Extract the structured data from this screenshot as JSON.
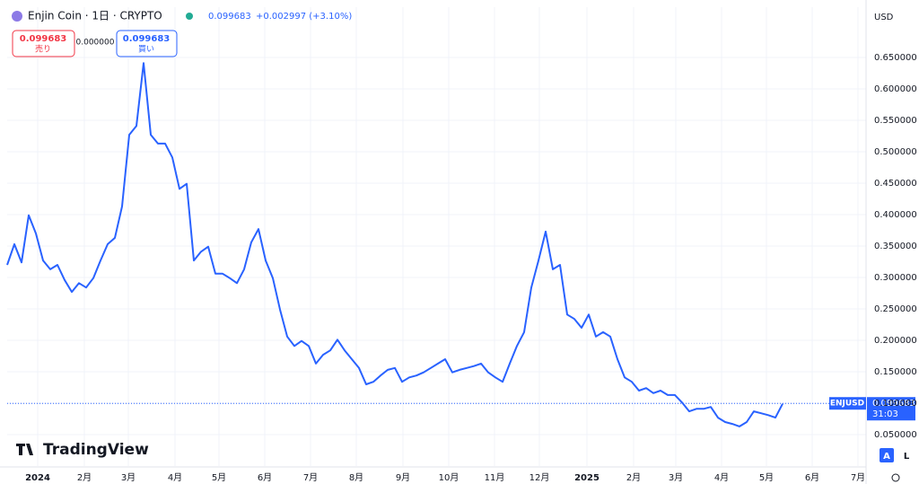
{
  "header": {
    "symbol": "Enjin Coin · 1日 · CRYPTO",
    "price": "0.099683",
    "change": "+0.002997 (+3.10%)"
  },
  "trade": {
    "sell_price": "0.099683",
    "sell_label": "売り",
    "spread": "0.000000",
    "buy_price": "0.099683",
    "buy_label": "買い"
  },
  "currency": "USD",
  "price_tag": {
    "symbol": "ENJUSD",
    "price": "0.099683",
    "countdown": "31:03"
  },
  "logo": "TradingView",
  "buttons": [
    "A",
    "L"
  ],
  "chart_data": {
    "type": "line",
    "color": "#2962ff",
    "grid": true,
    "values": [
      0.32,
      0.353,
      0.324,
      0.399,
      0.37,
      0.327,
      0.313,
      0.32,
      0.296,
      0.277,
      0.291,
      0.284,
      0.299,
      0.327,
      0.353,
      0.363,
      0.413,
      0.527,
      0.541,
      0.641,
      0.527,
      0.513,
      0.513,
      0.491,
      0.441,
      0.449,
      0.327,
      0.341,
      0.349,
      0.306,
      0.306,
      0.299,
      0.291,
      0.313,
      0.356,
      0.377,
      0.327,
      0.299,
      0.249,
      0.206,
      0.191,
      0.199,
      0.191,
      0.163,
      0.177,
      0.184,
      0.201,
      0.184,
      0.17,
      0.156,
      0.13,
      0.134,
      0.144,
      0.153,
      0.156,
      0.134,
      0.141,
      0.144,
      0.149,
      0.156,
      0.163,
      0.17,
      0.149,
      0.153,
      0.156,
      0.159,
      0.163,
      0.149,
      0.141,
      0.134,
      0.163,
      0.191,
      0.213,
      0.284,
      0.327,
      0.373,
      0.313,
      0.32,
      0.241,
      0.234,
      0.22,
      0.241,
      0.206,
      0.213,
      0.206,
      0.17,
      0.141,
      0.134,
      0.12,
      0.124,
      0.116,
      0.12,
      0.113,
      0.113,
      0.101,
      0.087,
      0.091,
      0.091,
      0.094,
      0.077,
      0.07,
      0.067,
      0.063,
      0.07,
      0.087,
      0.084,
      0.081,
      0.077,
      0.099
    ],
    "last_value": 0.099683,
    "xlim": [
      0,
      119.625
    ],
    "xticks": [
      {
        "value": 4.25,
        "label": "2024"
      },
      {
        "value": 10.75,
        "label": "2月"
      },
      {
        "value": 16.875,
        "label": "3月"
      },
      {
        "value": 23.375,
        "label": "4月"
      },
      {
        "value": 29.5,
        "label": "5月"
      },
      {
        "value": 35.875,
        "label": "6月"
      },
      {
        "value": 42.25,
        "label": "7月"
      },
      {
        "value": 48.625,
        "label": "8月"
      },
      {
        "value": 55.125,
        "label": "9月"
      },
      {
        "value": 61.5,
        "label": "10月"
      },
      {
        "value": 67.875,
        "label": "11月"
      },
      {
        "value": 74.125,
        "label": "12月"
      },
      {
        "value": 80.75,
        "label": "2025"
      },
      {
        "value": 87.25,
        "label": "2月"
      },
      {
        "value": 93.125,
        "label": "3月"
      },
      {
        "value": 99.5,
        "label": "4月"
      },
      {
        "value": 105.75,
        "label": "5月"
      },
      {
        "value": 112.125,
        "label": "6月"
      },
      {
        "value": 118.5,
        "label": "7月"
      }
    ],
    "ylim": [
      0,
      0.73
    ],
    "yticks": [
      {
        "value": 0.05,
        "label": "0.050000"
      },
      {
        "value": 0.1,
        "label": "0.100000"
      },
      {
        "value": 0.15,
        "label": "0.150000"
      },
      {
        "value": 0.2,
        "label": "0.200000"
      },
      {
        "value": 0.25,
        "label": "0.250000"
      },
      {
        "value": 0.3,
        "label": "0.300000"
      },
      {
        "value": 0.35,
        "label": "0.350000"
      },
      {
        "value": 0.4,
        "label": "0.400000"
      },
      {
        "value": 0.45,
        "label": "0.450000"
      },
      {
        "value": 0.5,
        "label": "0.500000"
      },
      {
        "value": 0.55,
        "label": "0.550000"
      },
      {
        "value": 0.6,
        "label": "0.600000"
      },
      {
        "value": 0.65,
        "label": "0.650000"
      }
    ]
  }
}
